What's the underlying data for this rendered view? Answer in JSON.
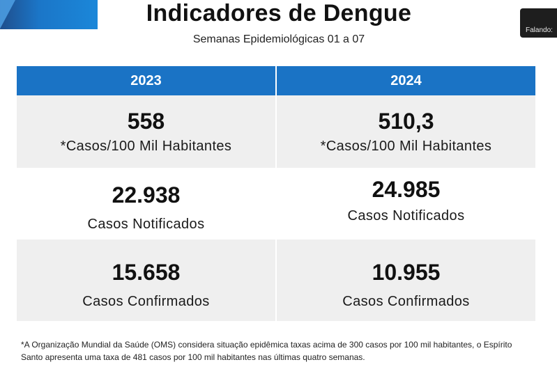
{
  "slide": {
    "title": "Indicadores de Dengue",
    "subtitle": "Semanas Epidemiológicas 01 a 07",
    "speaker_label": "Falando:",
    "colors": {
      "header_blue": "#1a73c5",
      "row_shade": "#efefef",
      "accent_blue": "#1b76c8"
    }
  },
  "table": {
    "columns": [
      "2023",
      "2024"
    ],
    "rows": [
      {
        "cells": [
          {
            "value": "558",
            "label": "*Casos/100 Mil Habitantes"
          },
          {
            "value": "510,3",
            "label": "*Casos/100 Mil Habitantes"
          }
        ]
      },
      {
        "cells": [
          {
            "value": "22.938",
            "label": "Casos Notificados"
          },
          {
            "value": "24.985",
            "label": "Casos Notificados"
          }
        ]
      },
      {
        "cells": [
          {
            "value": "15.658",
            "label": "Casos Confirmados"
          },
          {
            "value": "10.955",
            "label": "Casos Confirmados"
          }
        ]
      }
    ]
  },
  "footnote": "*A Organização Mundial da Saúde (OMS) considera situação epidêmica taxas acima de 300 casos por 100 mil habitantes, o Espírito Santo  apresenta uma taxa de 481 casos por 100 mil habitantes nas últimas quatro semanas."
}
